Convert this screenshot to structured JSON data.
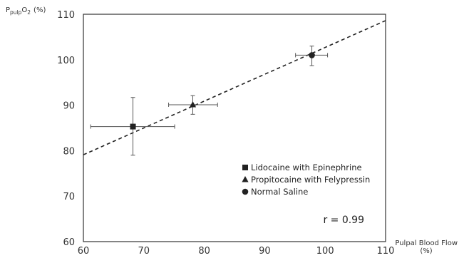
{
  "chart_data": {
    "type": "scatter",
    "title": "",
    "ylabel": {
      "base": "P",
      "sub": "pulp",
      "mid": "O",
      "sub2": "2",
      "unit": "(%)"
    },
    "xlabel": "Pulpal Blood Flow",
    "xlabel_unit": "(%)",
    "xlim": [
      60,
      110
    ],
    "ylim": [
      60,
      110
    ],
    "xticks": [
      "60",
      "70",
      "80",
      "90",
      "100",
      "110"
    ],
    "yticks": [
      "60",
      "70",
      "80",
      "90",
      "100",
      "110"
    ],
    "grid": false,
    "legend_position": "bottom-right",
    "series": [
      {
        "name": "Lidocaine with Epinephrine",
        "marker": "square",
        "x": 68.2,
        "y": 85.3,
        "x_err": [
          7.0,
          6.9
        ],
        "y_err": [
          6.3,
          6.4
        ]
      },
      {
        "name": "Propitocaine with Felypressin",
        "marker": "triangle",
        "x": 78.1,
        "y": 90.1,
        "x_err": [
          4.0,
          4.1
        ],
        "y_err": [
          2.1,
          2.0
        ]
      },
      {
        "name": "Normal Saline",
        "marker": "circle",
        "x": 97.8,
        "y": 101.0,
        "x_err": [
          2.7,
          2.6
        ],
        "y_err": [
          2.3,
          2.0
        ]
      }
    ],
    "trendline": {
      "style": "dashed",
      "from": [
        60,
        79.1
      ],
      "to": [
        110,
        108.6
      ]
    },
    "annotation": "r = 0.99"
  }
}
